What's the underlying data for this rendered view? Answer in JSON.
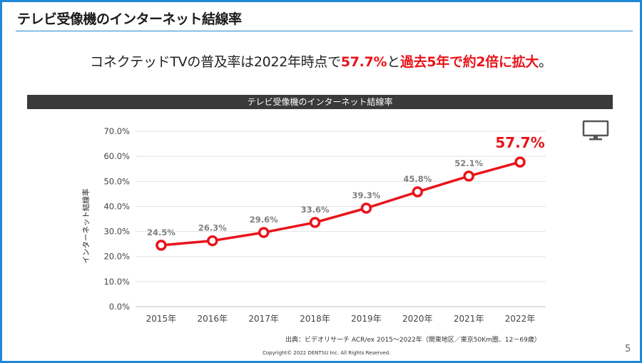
{
  "slide": {
    "title": "テレビ受像機のインターネット結線率",
    "headline_parts": {
      "p1": "コネクテッドTVの普及率は2022年時点で",
      "p2": "57.7%",
      "p3": "と",
      "p4": "過去5年で約2倍に拡大",
      "p5": "。"
    },
    "source": "出典：ビデオリサーチ ACR/ex 2015～2022年（関東地区／東京50Km圏、12－69歳）",
    "copyright": "Copyright© 2022 DENTSU Inc. All Rights Reserved.",
    "page_number": "5",
    "icons": {
      "tv": "tv-icon"
    }
  },
  "chart_data": {
    "type": "line",
    "title": "テレビ受像機のインターネット結線率",
    "ylabel": "インターネット結線率",
    "xlabel": "",
    "categories": [
      "2015年",
      "2016年",
      "2017年",
      "2018年",
      "2019年",
      "2020年",
      "2021年",
      "2022年"
    ],
    "series": [
      {
        "values": [
          24.5,
          26.3,
          29.6,
          33.6,
          39.3,
          45.8,
          52.1,
          57.7
        ],
        "color": "#e8141a"
      }
    ],
    "data_labels": [
      "24.5%",
      "26.3%",
      "29.6%",
      "33.6%",
      "39.3%",
      "45.8%",
      "52.1%",
      "57.7%"
    ],
    "ylim": [
      0,
      70
    ],
    "yticks": [
      0,
      10,
      20,
      30,
      40,
      50,
      60,
      70
    ],
    "ytick_labels": [
      "0.0%",
      "10.0%",
      "20.0%",
      "30.0%",
      "40.0%",
      "50.0%",
      "60.0%",
      "70.0%"
    ],
    "grid": true,
    "highlight_last_label": true
  }
}
